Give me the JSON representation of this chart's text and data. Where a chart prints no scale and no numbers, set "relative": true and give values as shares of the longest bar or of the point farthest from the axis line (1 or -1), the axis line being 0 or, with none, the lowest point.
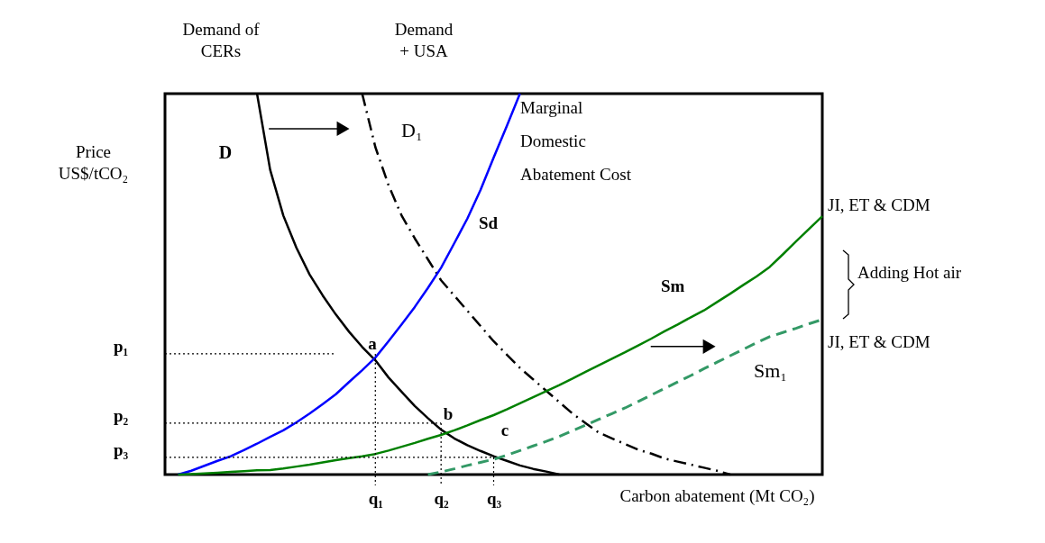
{
  "chart_data": {
    "type": "line",
    "relative": true,
    "xlabel": "Carbon abatement (Mt CO₂)",
    "ylabel": "Price US$/tCO₂",
    "categories": [
      null,
      null,
      null,
      null,
      null,
      null,
      null,
      null,
      null,
      null,
      null,
      null,
      null,
      null,
      null,
      null,
      "q₁",
      null,
      null,
      null,
      null,
      "q₂",
      null,
      null,
      null,
      "q₃",
      null,
      null,
      null,
      null,
      null,
      null,
      null,
      null,
      null,
      null,
      null,
      null,
      null,
      null,
      null,
      null,
      null,
      null,
      null,
      null,
      null,
      null,
      null,
      null,
      null
    ],
    "marker": "none",
    "series": [
      {
        "color": "#000000",
        "line_style": "solid",
        "values": [
          null,
          null,
          null,
          null,
          null,
          null,
          null,
          1.0,
          0.8,
          0.68,
          0.595,
          0.525,
          0.47,
          0.42,
          0.375,
          0.335,
          0.3,
          0.255,
          0.217,
          0.18,
          0.148,
          0.118,
          0.095,
          0.077,
          0.062,
          0.048,
          0.036,
          0.024,
          0.015,
          0.008,
          0,
          null,
          null,
          null,
          null,
          null,
          null,
          null,
          null,
          null,
          null,
          null,
          null,
          null,
          null,
          null,
          null,
          null,
          null,
          null,
          null
        ]
      },
      {
        "color": "#000000",
        "line_style": "dashdot",
        "values": [
          null,
          null,
          null,
          null,
          null,
          null,
          null,
          null,
          null,
          null,
          null,
          null,
          null,
          null,
          null,
          1.0,
          0.86,
          0.76,
          0.68,
          0.62,
          0.565,
          0.51,
          0.47,
          0.43,
          0.39,
          0.35,
          0.315,
          0.28,
          0.25,
          0.22,
          0.19,
          0.16,
          0.135,
          0.11,
          0.095,
          0.08,
          0.065,
          0.055,
          0.042,
          0.034,
          0.026,
          0.018,
          0.01,
          0,
          null,
          null,
          null,
          null,
          null,
          null,
          null
        ]
      },
      {
        "color": "#0000ff",
        "line_style": "solid",
        "values": [
          null,
          0,
          0.01,
          0.023,
          0.036,
          0.048,
          0.064,
          0.081,
          0.099,
          0.116,
          0.137,
          0.16,
          0.185,
          0.211,
          0.243,
          0.274,
          0.307,
          0.35,
          0.394,
          0.44,
          0.49,
          0.543,
          0.607,
          0.672,
          0.747,
          0.832,
          0.915,
          1.0,
          null,
          null,
          null,
          null,
          null,
          null,
          null,
          null,
          null,
          null,
          null,
          null,
          null,
          null,
          null,
          null,
          null,
          null,
          null,
          null,
          null,
          null,
          null
        ]
      },
      {
        "color": "#008000",
        "line_style": "solid",
        "values": [
          null,
          0,
          0.001,
          0.003,
          0.005,
          0.007,
          0.009,
          0.011,
          0.012,
          0.016,
          0.021,
          0.026,
          0.032,
          0.038,
          0.043,
          0.048,
          0.054,
          0.063,
          0.073,
          0.083,
          0.094,
          0.104,
          0.116,
          0.129,
          0.143,
          0.156,
          0.171,
          0.187,
          0.203,
          0.219,
          0.235,
          0.252,
          0.27,
          0.287,
          0.304,
          0.321,
          0.339,
          0.357,
          0.376,
          0.394,
          0.413,
          0.431,
          0.453,
          0.475,
          0.498,
          0.52,
          0.545,
          0.578,
          0.612,
          0.645,
          0.678
        ]
      },
      {
        "color": "#339966",
        "line_style": "dashed",
        "values": [
          null,
          null,
          null,
          null,
          null,
          null,
          null,
          null,
          null,
          null,
          null,
          null,
          null,
          null,
          null,
          null,
          null,
          null,
          null,
          null,
          0,
          0.007,
          0.015,
          0.024,
          0.032,
          0.04,
          0.051,
          0.063,
          0.075,
          0.087,
          0.1,
          0.115,
          0.13,
          0.145,
          0.16,
          0.175,
          0.192,
          0.209,
          0.226,
          0.243,
          0.26,
          0.278,
          0.295,
          0.312,
          0.329,
          0.346,
          0.362,
          0.373,
          0.384,
          0.396,
          0.407
        ]
      },
      {
        "color": "#000000",
        "line_style": "dotted",
        "values": [
          0.317,
          0.317,
          0.317,
          0.317,
          0.317,
          0.317,
          0.317,
          0.317,
          0.317,
          0.317,
          0.317,
          0.317,
          0.317,
          0.317,
          null,
          null,
          null,
          null,
          null,
          null,
          null,
          null,
          null,
          null,
          null,
          null,
          null,
          null,
          null,
          null,
          null,
          null,
          null,
          null,
          null,
          null,
          null,
          null,
          null,
          null,
          null,
          null,
          null,
          null,
          null,
          null,
          null,
          null,
          null,
          null,
          null
        ]
      },
      {
        "color": "#000000",
        "line_style": "dotted",
        "values": [
          0.135,
          0.135,
          0.135,
          0.135,
          0.135,
          0.135,
          0.135,
          0.135,
          0.135,
          0.135,
          0.135,
          0.135,
          0.135,
          0.135,
          0.135,
          0.135,
          0.135,
          0.135,
          0.135,
          0.135,
          0.135,
          0.135,
          null,
          null,
          null,
          null,
          null,
          null,
          null,
          null,
          null,
          null,
          null,
          null,
          null,
          null,
          null,
          null,
          null,
          null,
          null,
          null,
          null,
          null,
          null,
          null,
          null,
          null,
          null,
          null,
          null
        ]
      },
      {
        "color": "#000000",
        "line_style": "dotted",
        "values": [
          0.045,
          0.045,
          0.045,
          0.045,
          0.045,
          0.045,
          0.045,
          0.045,
          0.045,
          0.045,
          0.045,
          0.045,
          0.045,
          0.045,
          0.045,
          0.045,
          0.045,
          0.045,
          0.045,
          0.045,
          0.045,
          0.045,
          0.045,
          0.045,
          0.045,
          0.045,
          null,
          null,
          null,
          null,
          null,
          null,
          null,
          null,
          null,
          null,
          null,
          null,
          null,
          null,
          null,
          null,
          null,
          null,
          null,
          null,
          null,
          null,
          null,
          null,
          null
        ]
      }
    ],
    "annotations": [
      "Demand of CERs",
      "Demand + USA",
      "D",
      "D₁",
      "Marginal Domestic Abatement  Cost",
      "Sd",
      "Sm",
      "Sm₁",
      "JI, ET & CDM",
      "Adding Hot air",
      "JI, ET & CDM",
      "a",
      "b",
      "c",
      "p₁",
      "p₂",
      "p₃"
    ]
  }
}
